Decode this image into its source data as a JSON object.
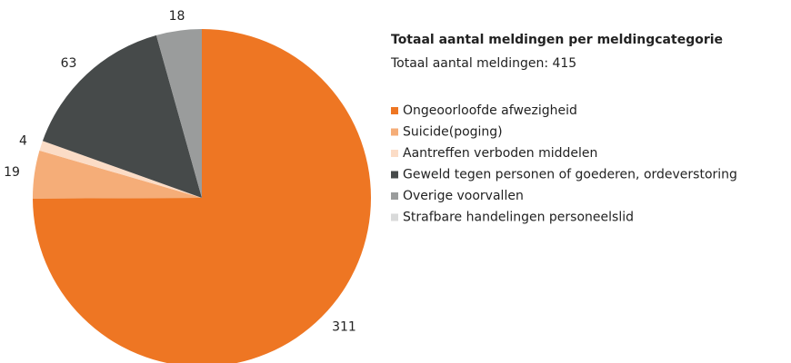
{
  "chart_data": {
    "type": "pie",
    "title": "Totaal aantal meldingen per meldingcategorie",
    "subtitle": "Totaal aantal meldingen: 415",
    "categories": [
      "Ongeoorloofde afwezigheid",
      "Suicide(poging)",
      "Aantreffen verboden middelen",
      "Geweld tegen personen of goederen, ordeverstoring",
      "Overige voorvallen",
      "Strafbare handelingen personeelslid"
    ],
    "values": [
      311,
      19,
      4,
      63,
      18,
      0
    ],
    "colors": [
      "#ee7623",
      "#f5ad78",
      "#fbdcc6",
      "#464a4a",
      "#9a9c9c",
      "#d9dada"
    ],
    "legend": "right"
  }
}
